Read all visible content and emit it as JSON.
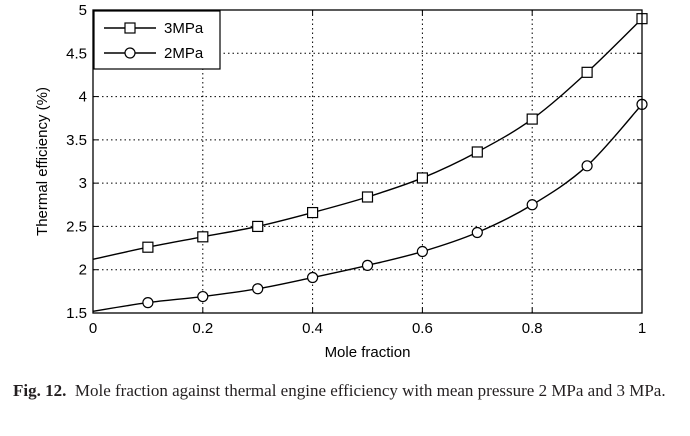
{
  "chart_data": {
    "type": "line",
    "x": [
      0,
      0.1,
      0.2,
      0.3,
      0.4,
      0.5,
      0.6,
      0.7,
      0.8,
      0.9,
      1.0
    ],
    "series": [
      {
        "name": "3MPa",
        "marker": "square",
        "values": [
          2.12,
          2.26,
          2.38,
          2.5,
          2.66,
          2.84,
          3.06,
          3.36,
          3.74,
          4.28,
          4.9
        ],
        "color": "#000000"
      },
      {
        "name": "2MPa",
        "marker": "circle",
        "values": [
          1.52,
          1.62,
          1.69,
          1.78,
          1.91,
          2.05,
          2.21,
          2.43,
          2.75,
          3.2,
          3.91
        ],
        "color": "#000000"
      }
    ],
    "xlabel": "Mole fraction",
    "ylabel": "Thermal efficiency (%)",
    "xlim": [
      0,
      1
    ],
    "ylim": [
      1.5,
      5
    ],
    "xticks": [
      0,
      0.2,
      0.4,
      0.6,
      0.8,
      1
    ],
    "xtick_labels": [
      "0",
      "0.2",
      "0.4",
      "0.6",
      "0.8",
      "1"
    ],
    "yticks": [
      1.5,
      2,
      2.5,
      3,
      3.5,
      4,
      4.5,
      5
    ],
    "ytick_labels": [
      "1.5",
      "2",
      "2.5",
      "3",
      "3.5",
      "4",
      "4.5",
      "5"
    ],
    "grid": true,
    "legend_position": "top-left"
  },
  "caption": {
    "label": "Fig. 12.",
    "text": "Mole fraction against thermal engine efficiency with mean pressure 2 MPa and 3 MPa."
  }
}
